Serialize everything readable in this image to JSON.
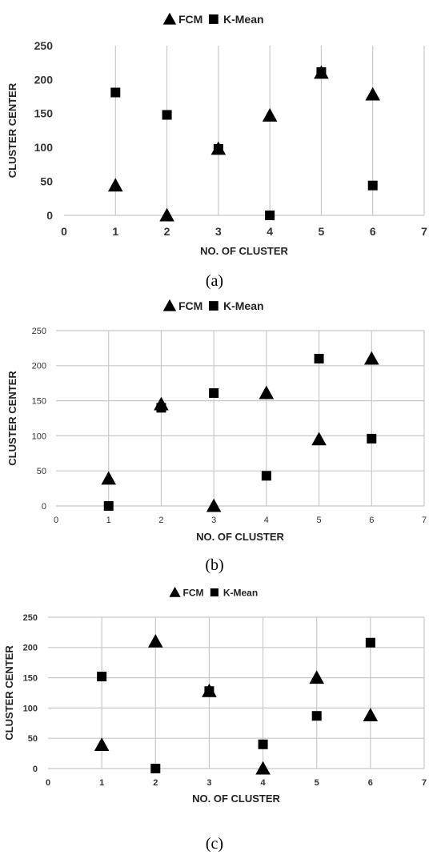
{
  "chart_data": [
    {
      "type": "scatter",
      "panel_label": "(a)",
      "xlabel": "NO. OF CLUSTER",
      "ylabel": "CLUSTER CENTER",
      "xlim": [
        0,
        7
      ],
      "ylim": [
        0,
        250
      ],
      "x_ticks": [
        0,
        1,
        2,
        3,
        4,
        5,
        6,
        7
      ],
      "y_ticks": [
        0,
        50,
        100,
        150,
        200,
        250
      ],
      "grid": "vertical",
      "legend_position": "top-center",
      "series": [
        {
          "name": "FCM",
          "marker": "triangle",
          "color": "#000000",
          "x": [
            1,
            2,
            3,
            4,
            5,
            6
          ],
          "y": [
            44,
            0,
            98,
            147,
            210,
            178
          ]
        },
        {
          "name": "K-Mean",
          "marker": "square",
          "color": "#000000",
          "x": [
            1,
            2,
            3,
            4,
            5,
            6
          ],
          "y": [
            181,
            148,
            98,
            0,
            211,
            44
          ]
        }
      ]
    },
    {
      "type": "scatter",
      "panel_label": "(b)",
      "xlabel": "NO. OF CLUSTER",
      "ylabel": "CLUSTER CENTER",
      "xlim": [
        0,
        7
      ],
      "ylim": [
        0,
        250
      ],
      "x_ticks": [
        0,
        1,
        2,
        3,
        4,
        5,
        6,
        7
      ],
      "y_ticks": [
        0,
        50,
        100,
        150,
        200,
        250
      ],
      "grid": "both",
      "legend_position": "top-center",
      "series": [
        {
          "name": "FCM",
          "marker": "triangle",
          "color": "#000000",
          "x": [
            1,
            2,
            3,
            4,
            5,
            6
          ],
          "y": [
            39,
            145,
            0,
            161,
            95,
            210
          ]
        },
        {
          "name": "K-Mean",
          "marker": "square",
          "color": "#000000",
          "x": [
            1,
            2,
            3,
            4,
            5,
            6
          ],
          "y": [
            0,
            140,
            161,
            43,
            210,
            96
          ]
        }
      ]
    },
    {
      "type": "scatter",
      "panel_label": "(c)",
      "xlabel": "NO. OF CLUSTER",
      "ylabel": "CLUSTER CENTER",
      "xlim": [
        0,
        7
      ],
      "ylim": [
        0,
        250
      ],
      "x_ticks": [
        0,
        1,
        2,
        3,
        4,
        5,
        6,
        7
      ],
      "y_ticks": [
        0,
        50,
        100,
        150,
        200,
        250
      ],
      "grid": "both",
      "legend_position": "top-center",
      "series": [
        {
          "name": "FCM",
          "marker": "triangle",
          "color": "#000000",
          "x": [
            1,
            2,
            3,
            4,
            5,
            6
          ],
          "y": [
            39,
            210,
            128,
            0,
            150,
            88
          ]
        },
        {
          "name": "K-Mean",
          "marker": "square",
          "color": "#000000",
          "x": [
            1,
            2,
            3,
            4,
            5,
            6
          ],
          "y": [
            152,
            0,
            128,
            40,
            87,
            208
          ]
        }
      ]
    }
  ]
}
